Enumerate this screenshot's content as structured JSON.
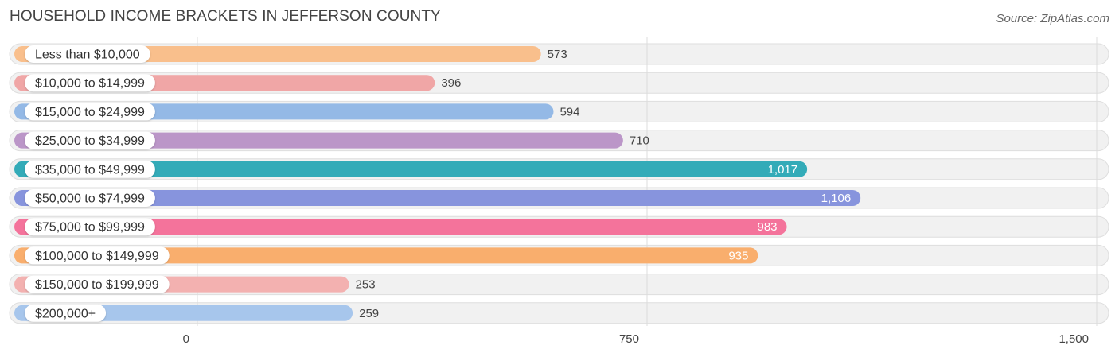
{
  "title": "HOUSEHOLD INCOME BRACKETS IN JEFFERSON COUNTY",
  "source": "Source: ZipAtlas.com",
  "chart_data": {
    "type": "bar",
    "orientation": "horizontal",
    "categories": [
      "Less than $10,000",
      "$10,000 to $14,999",
      "$15,000 to $24,999",
      "$25,000 to $34,999",
      "$35,000 to $49,999",
      "$50,000 to $74,999",
      "$75,000 to $99,999",
      "$100,000 to $149,999",
      "$150,000 to $199,999",
      "$200,000+"
    ],
    "values": [
      573,
      396,
      594,
      710,
      1017,
      1106,
      983,
      935,
      253,
      259
    ],
    "value_labels": [
      "573",
      "396",
      "594",
      "710",
      "1,017",
      "1,106",
      "983",
      "935",
      "253",
      "259"
    ],
    "colors": [
      "#f9bf8c",
      "#f0a6a6",
      "#94b9e6",
      "#bb96c8",
      "#33abb8",
      "#8794dd",
      "#f4739b",
      "#f9ae6d",
      "#f3b1b0",
      "#a7c6ec"
    ],
    "xlim": [
      0,
      1500
    ],
    "xticks": [
      0,
      750,
      1500
    ],
    "xtick_labels": [
      "0",
      "750",
      "1,500"
    ],
    "grid": true,
    "legend": "none"
  }
}
